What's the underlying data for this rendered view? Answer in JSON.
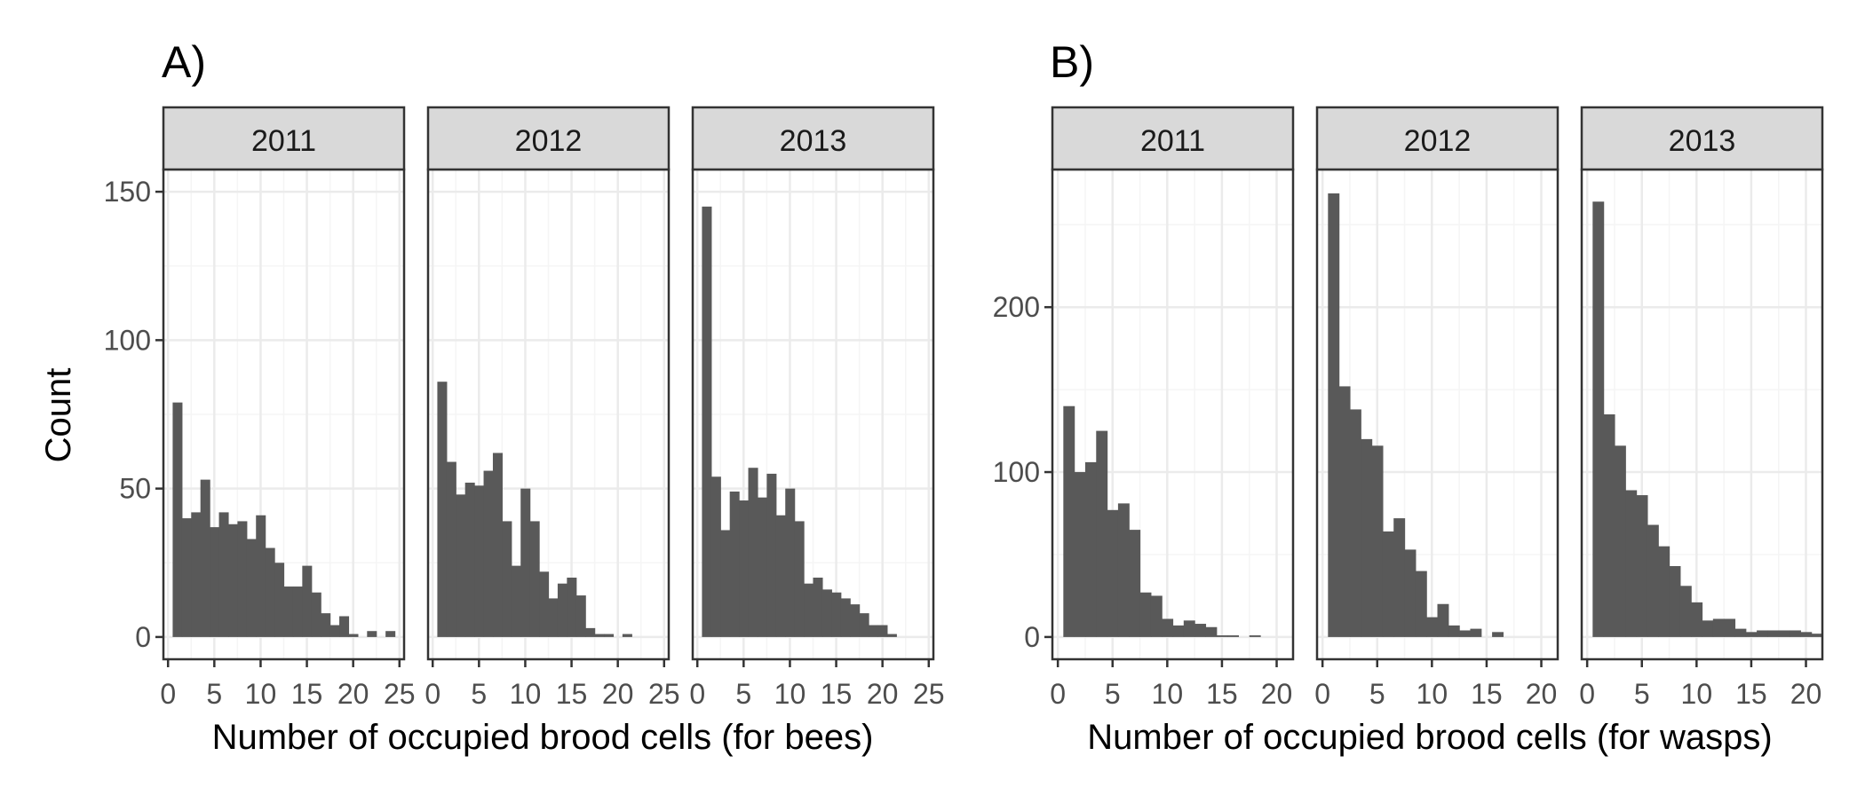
{
  "figure": {
    "colors": {
      "bar": "#595959",
      "panel_border": "#333333",
      "strip_fill": "#d9d9d9",
      "grid_major": "#ebebeb",
      "grid_minor": "#f5f5f5"
    }
  },
  "chart_data": [
    {
      "type": "bar",
      "panel_tag": "A)",
      "xlabel": "Number of occupied brood cells (for bees)",
      "ylabel": "Count",
      "xlim": [
        -0.5,
        25.5
      ],
      "ylim": [
        -7.5,
        157.5
      ],
      "xticks": [
        0,
        5,
        10,
        15,
        20,
        25
      ],
      "yticks": [
        0,
        50,
        100,
        150
      ],
      "grid": true,
      "facets": [
        {
          "strip": "2011",
          "bins": [
            {
              "x": 1,
              "count": 79
            },
            {
              "x": 2,
              "count": 40
            },
            {
              "x": 3,
              "count": 42
            },
            {
              "x": 4,
              "count": 53
            },
            {
              "x": 5,
              "count": 37
            },
            {
              "x": 6,
              "count": 42
            },
            {
              "x": 7,
              "count": 38
            },
            {
              "x": 8,
              "count": 39
            },
            {
              "x": 9,
              "count": 33
            },
            {
              "x": 10,
              "count": 41
            },
            {
              "x": 11,
              "count": 30
            },
            {
              "x": 12,
              "count": 25
            },
            {
              "x": 13,
              "count": 17
            },
            {
              "x": 14,
              "count": 17
            },
            {
              "x": 15,
              "count": 24
            },
            {
              "x": 16,
              "count": 15
            },
            {
              "x": 17,
              "count": 8
            },
            {
              "x": 18,
              "count": 4
            },
            {
              "x": 19,
              "count": 7
            },
            {
              "x": 20,
              "count": 1
            },
            {
              "x": 21,
              "count": 0
            },
            {
              "x": 22,
              "count": 2
            },
            {
              "x": 23,
              "count": 0
            },
            {
              "x": 24,
              "count": 2
            }
          ]
        },
        {
          "strip": "2012",
          "bins": [
            {
              "x": 1,
              "count": 86
            },
            {
              "x": 2,
              "count": 59
            },
            {
              "x": 3,
              "count": 48
            },
            {
              "x": 4,
              "count": 52
            },
            {
              "x": 5,
              "count": 51
            },
            {
              "x": 6,
              "count": 56
            },
            {
              "x": 7,
              "count": 62
            },
            {
              "x": 8,
              "count": 39
            },
            {
              "x": 9,
              "count": 24
            },
            {
              "x": 10,
              "count": 50
            },
            {
              "x": 11,
              "count": 39
            },
            {
              "x": 12,
              "count": 22
            },
            {
              "x": 13,
              "count": 13
            },
            {
              "x": 14,
              "count": 18
            },
            {
              "x": 15,
              "count": 20
            },
            {
              "x": 16,
              "count": 14
            },
            {
              "x": 17,
              "count": 3
            },
            {
              "x": 18,
              "count": 1
            },
            {
              "x": 19,
              "count": 1
            },
            {
              "x": 20,
              "count": 0
            },
            {
              "x": 21,
              "count": 1
            }
          ]
        },
        {
          "strip": "2013",
          "bins": [
            {
              "x": 1,
              "count": 145
            },
            {
              "x": 2,
              "count": 54
            },
            {
              "x": 3,
              "count": 36
            },
            {
              "x": 4,
              "count": 49
            },
            {
              "x": 5,
              "count": 46
            },
            {
              "x": 6,
              "count": 57
            },
            {
              "x": 7,
              "count": 47
            },
            {
              "x": 8,
              "count": 55
            },
            {
              "x": 9,
              "count": 41
            },
            {
              "x": 10,
              "count": 50
            },
            {
              "x": 11,
              "count": 39
            },
            {
              "x": 12,
              "count": 18
            },
            {
              "x": 13,
              "count": 20
            },
            {
              "x": 14,
              "count": 16
            },
            {
              "x": 15,
              "count": 15
            },
            {
              "x": 16,
              "count": 13
            },
            {
              "x": 17,
              "count": 11
            },
            {
              "x": 18,
              "count": 8
            },
            {
              "x": 19,
              "count": 4
            },
            {
              "x": 20,
              "count": 4
            },
            {
              "x": 21,
              "count": 1
            }
          ]
        }
      ]
    },
    {
      "type": "bar",
      "panel_tag": "B)",
      "xlabel": "Number of occupied brood cells (for wasps)",
      "ylabel": "",
      "xlim": [
        -0.5,
        21.5
      ],
      "ylim": [
        -13.5,
        283.5
      ],
      "xticks": [
        0,
        5,
        10,
        15,
        20
      ],
      "yticks": [
        0,
        100,
        200
      ],
      "grid": true,
      "facets": [
        {
          "strip": "2011",
          "bins": [
            {
              "x": 1,
              "count": 140
            },
            {
              "x": 2,
              "count": 100
            },
            {
              "x": 3,
              "count": 106
            },
            {
              "x": 4,
              "count": 125
            },
            {
              "x": 5,
              "count": 77
            },
            {
              "x": 6,
              "count": 81
            },
            {
              "x": 7,
              "count": 65
            },
            {
              "x": 8,
              "count": 27
            },
            {
              "x": 9,
              "count": 25
            },
            {
              "x": 10,
              "count": 11
            },
            {
              "x": 11,
              "count": 7
            },
            {
              "x": 12,
              "count": 10
            },
            {
              "x": 13,
              "count": 8
            },
            {
              "x": 14,
              "count": 6
            },
            {
              "x": 15,
              "count": 1
            },
            {
              "x": 16,
              "count": 1
            },
            {
              "x": 17,
              "count": 0
            },
            {
              "x": 18,
              "count": 1
            }
          ]
        },
        {
          "strip": "2012",
          "bins": [
            {
              "x": 1,
              "count": 269
            },
            {
              "x": 2,
              "count": 152
            },
            {
              "x": 3,
              "count": 138
            },
            {
              "x": 4,
              "count": 120
            },
            {
              "x": 5,
              "count": 116
            },
            {
              "x": 6,
              "count": 64
            },
            {
              "x": 7,
              "count": 72
            },
            {
              "x": 8,
              "count": 53
            },
            {
              "x": 9,
              "count": 40
            },
            {
              "x": 10,
              "count": 12
            },
            {
              "x": 11,
              "count": 20
            },
            {
              "x": 12,
              "count": 7
            },
            {
              "x": 13,
              "count": 4
            },
            {
              "x": 14,
              "count": 5
            },
            {
              "x": 15,
              "count": 0
            },
            {
              "x": 16,
              "count": 3
            }
          ]
        },
        {
          "strip": "2013",
          "bins": [
            {
              "x": 1,
              "count": 264
            },
            {
              "x": 2,
              "count": 135
            },
            {
              "x": 3,
              "count": 116
            },
            {
              "x": 4,
              "count": 89
            },
            {
              "x": 5,
              "count": 86
            },
            {
              "x": 6,
              "count": 68
            },
            {
              "x": 7,
              "count": 55
            },
            {
              "x": 8,
              "count": 43
            },
            {
              "x": 9,
              "count": 31
            },
            {
              "x": 10,
              "count": 21
            },
            {
              "x": 11,
              "count": 10
            },
            {
              "x": 12,
              "count": 11
            },
            {
              "x": 13,
              "count": 11
            },
            {
              "x": 14,
              "count": 5
            },
            {
              "x": 15,
              "count": 3
            },
            {
              "x": 16,
              "count": 4
            },
            {
              "x": 17,
              "count": 4
            },
            {
              "x": 18,
              "count": 4
            },
            {
              "x": 19,
              "count": 4
            },
            {
              "x": 20,
              "count": 3
            },
            {
              "x": 21,
              "count": 2
            }
          ]
        }
      ]
    }
  ]
}
